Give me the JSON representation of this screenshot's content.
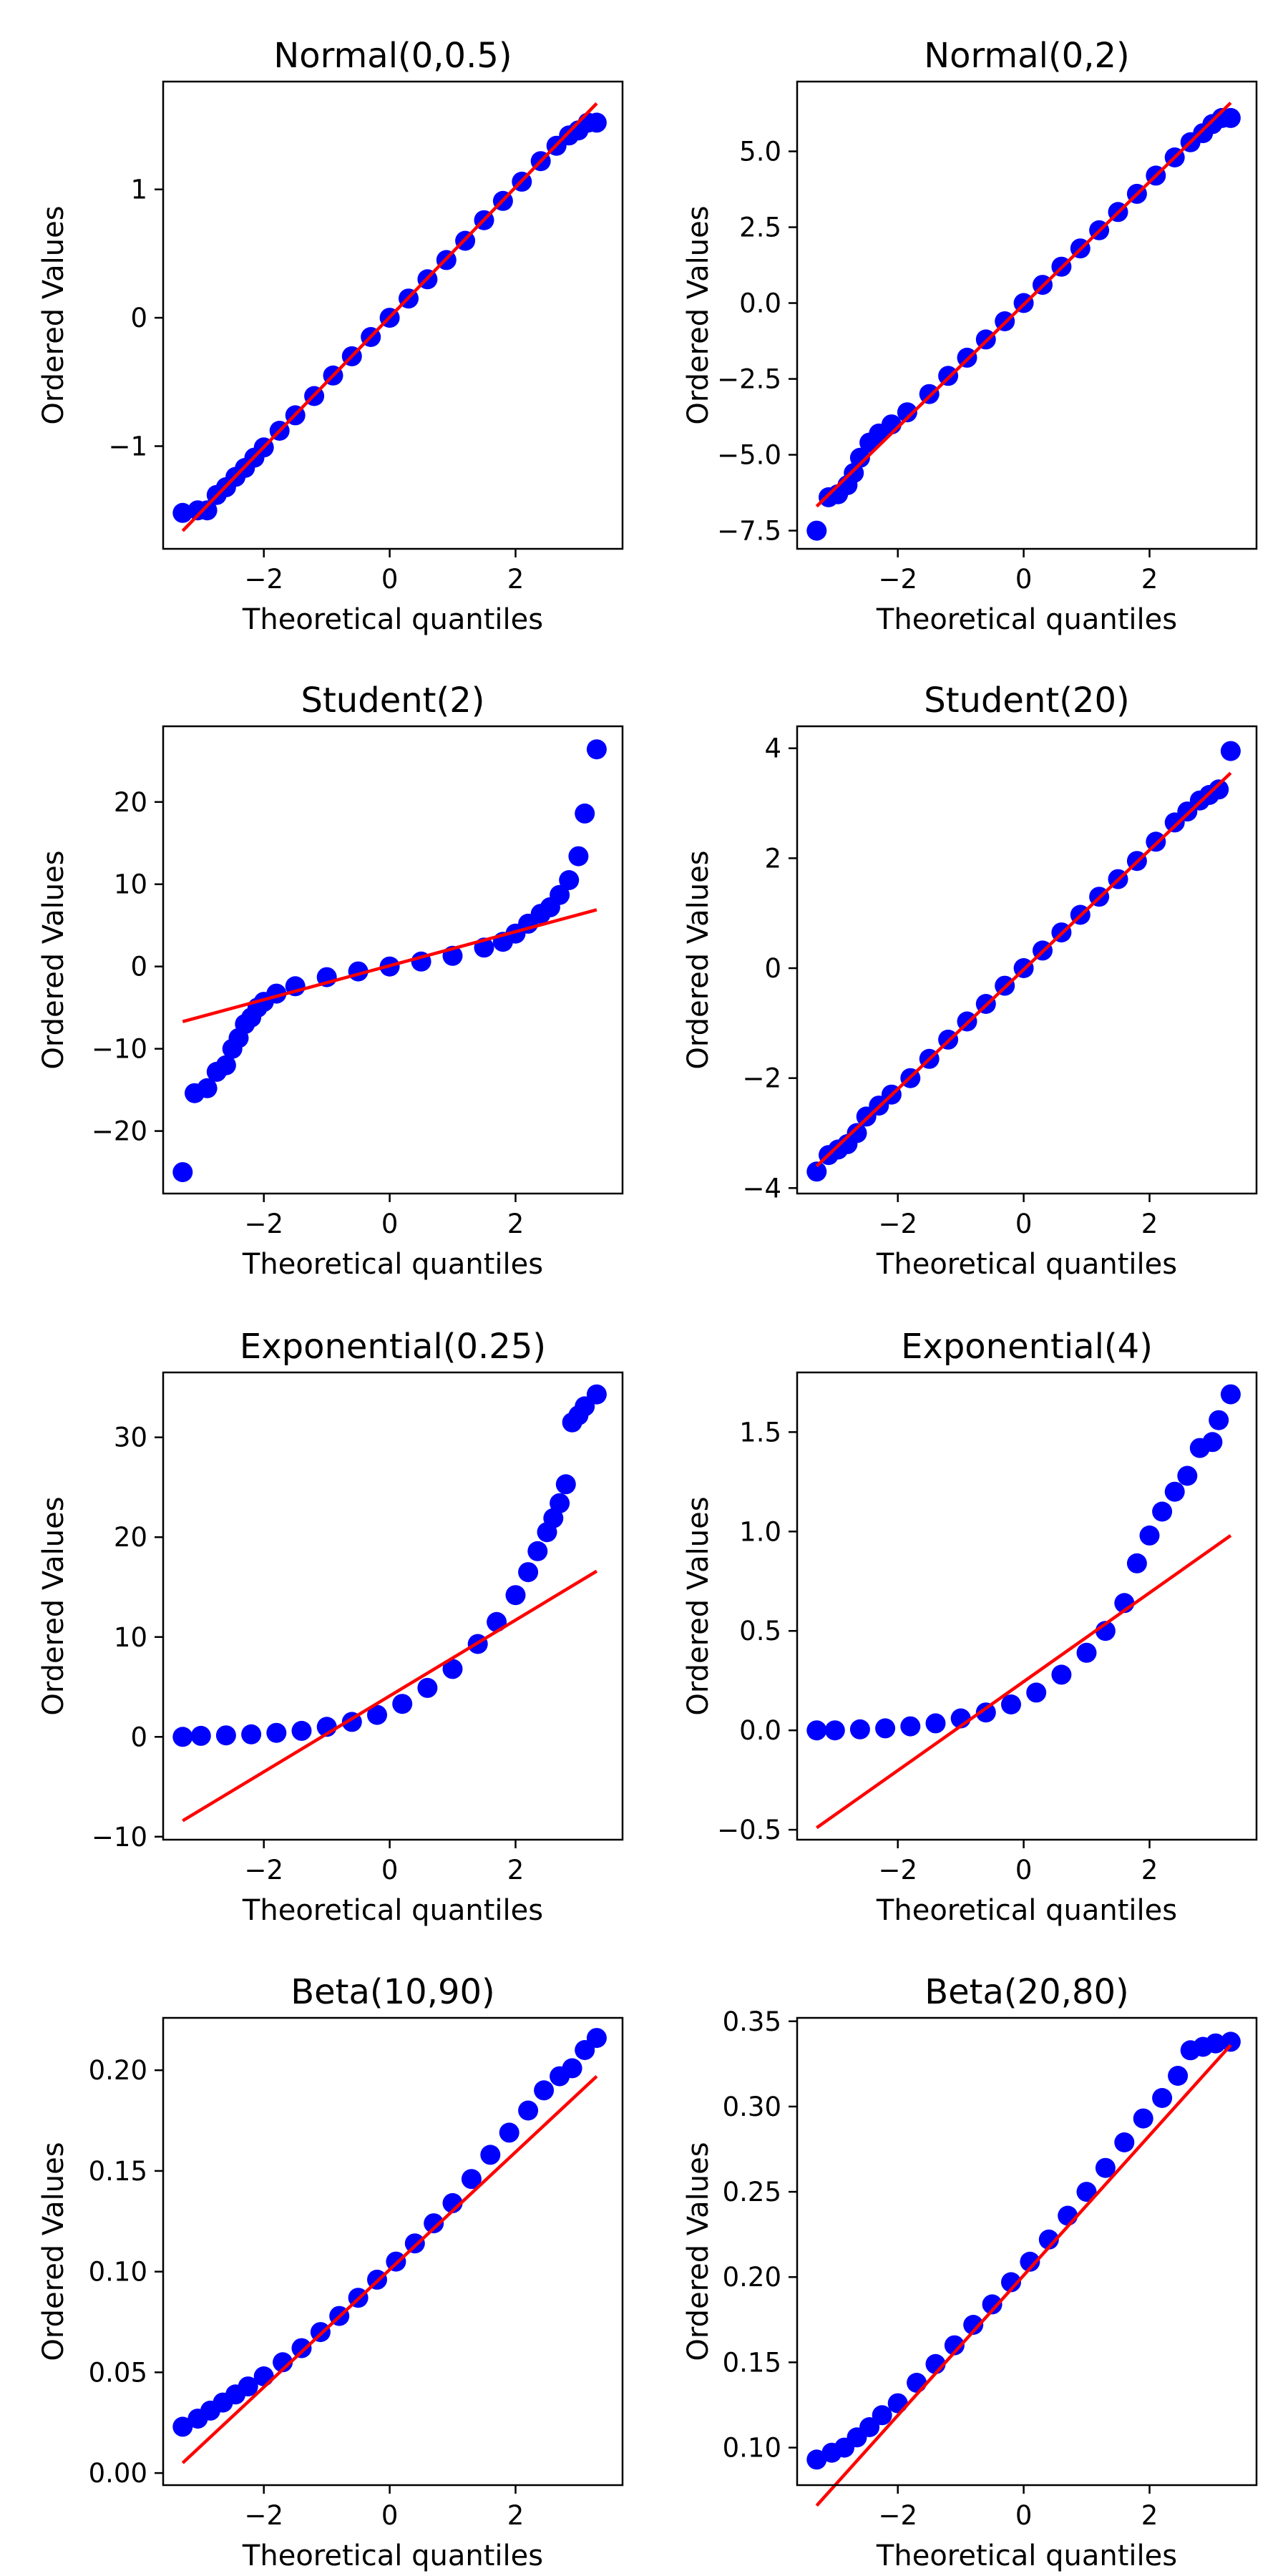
{
  "figure": {
    "colors": {
      "points": "#0000ff",
      "fit_line": "#ff0000",
      "axes": "#000000",
      "background": "#ffffff"
    }
  },
  "chart_data": [
    {
      "type": "scatter",
      "title": "Normal(0,0.5)",
      "xlabel": "Theoretical quantiles",
      "ylabel": "Ordered Values",
      "xlim": [
        -3.6,
        3.7
      ],
      "ylim": [
        -1.8,
        1.84
      ],
      "xticks": [
        -2,
        0,
        2
      ],
      "xtick_labels": [
        "−2",
        "0",
        "2"
      ],
      "yticks": [
        -1,
        0,
        1
      ],
      "ytick_labels": [
        "−1",
        "0",
        "1"
      ],
      "fit_line": {
        "x": [
          -3.29,
          3.29
        ],
        "y": [
          -1.66,
          1.67
        ]
      },
      "points": {
        "x": [
          -3.29,
          -3.05,
          -2.9,
          -2.75,
          -2.6,
          -2.45,
          -2.3,
          -2.15,
          -2.0,
          -1.75,
          -1.5,
          -1.2,
          -0.9,
          -0.6,
          -0.3,
          0.0,
          0.3,
          0.6,
          0.9,
          1.2,
          1.5,
          1.8,
          2.1,
          2.4,
          2.65,
          2.85,
          3.0,
          3.15,
          3.29
        ],
        "y": [
          -1.52,
          -1.5,
          -1.5,
          -1.38,
          -1.32,
          -1.24,
          -1.17,
          -1.09,
          -1.01,
          -0.88,
          -0.76,
          -0.61,
          -0.45,
          -0.3,
          -0.15,
          0.0,
          0.15,
          0.3,
          0.45,
          0.6,
          0.76,
          0.91,
          1.06,
          1.22,
          1.34,
          1.42,
          1.46,
          1.52,
          1.52
        ]
      }
    },
    {
      "type": "scatter",
      "title": "Normal(0,2)",
      "xlabel": "Theoretical quantiles",
      "ylabel": "Ordered Values",
      "xlim": [
        -3.6,
        3.7
      ],
      "ylim": [
        -8.1,
        7.3
      ],
      "xticks": [
        -2,
        0,
        2
      ],
      "xtick_labels": [
        "−2",
        "0",
        "2"
      ],
      "yticks": [
        -7.5,
        -5.0,
        -2.5,
        0.0,
        2.5,
        5.0
      ],
      "ytick_labels": [
        "−7.5",
        "−5.0",
        "−2.5",
        "0.0",
        "2.5",
        "5.0"
      ],
      "fit_line": {
        "x": [
          -3.29,
          3.29
        ],
        "y": [
          -6.7,
          6.6
        ]
      },
      "points": {
        "x": [
          -3.29,
          -3.1,
          -2.95,
          -2.8,
          -2.7,
          -2.6,
          -2.45,
          -2.3,
          -2.1,
          -1.85,
          -1.5,
          -1.2,
          -0.9,
          -0.6,
          -0.3,
          0.0,
          0.3,
          0.6,
          0.9,
          1.2,
          1.5,
          1.8,
          2.1,
          2.4,
          2.65,
          2.85,
          3.0,
          3.15,
          3.29
        ],
        "y": [
          -7.5,
          -6.4,
          -6.3,
          -6.0,
          -5.6,
          -5.1,
          -4.6,
          -4.3,
          -4.0,
          -3.6,
          -3.0,
          -2.4,
          -1.8,
          -1.2,
          -0.6,
          0.0,
          0.6,
          1.2,
          1.8,
          2.4,
          3.0,
          3.6,
          4.2,
          4.8,
          5.3,
          5.6,
          5.9,
          6.1,
          6.1
        ]
      }
    },
    {
      "type": "scatter",
      "title": "Student(2)",
      "xlabel": "Theoretical quantiles",
      "ylabel": "Ordered Values",
      "xlim": [
        -3.6,
        3.7
      ],
      "ylim": [
        -27.6,
        29.2
      ],
      "xticks": [
        -2,
        0,
        2
      ],
      "xtick_labels": [
        "−2",
        "0",
        "2"
      ],
      "yticks": [
        -20,
        -10,
        0,
        10,
        20
      ],
      "ytick_labels": [
        "−20",
        "−10",
        "0",
        "10",
        "20"
      ],
      "fit_line": {
        "x": [
          -3.29,
          3.29
        ],
        "y": [
          -6.7,
          6.9
        ]
      },
      "points": {
        "x": [
          -3.29,
          -3.1,
          -2.9,
          -2.75,
          -2.6,
          -2.5,
          -2.4,
          -2.3,
          -2.2,
          -2.1,
          -2.0,
          -1.8,
          -1.5,
          -1.0,
          -0.5,
          0.0,
          0.5,
          1.0,
          1.5,
          1.8,
          2.0,
          2.2,
          2.4,
          2.55,
          2.7,
          2.85,
          3.0,
          3.1,
          3.29
        ],
        "y": [
          -25.0,
          -15.4,
          -14.8,
          -12.8,
          -12.0,
          -10.0,
          -8.7,
          -7.0,
          -6.2,
          -5.0,
          -4.3,
          -3.3,
          -2.4,
          -1.3,
          -0.6,
          0.0,
          0.6,
          1.3,
          2.3,
          3.0,
          4.0,
          5.2,
          6.4,
          7.2,
          8.7,
          10.5,
          13.4,
          18.6,
          26.4
        ]
      }
    },
    {
      "type": "scatter",
      "title": "Student(20)",
      "xlabel": "Theoretical quantiles",
      "ylabel": "Ordered Values",
      "xlim": [
        -3.6,
        3.7
      ],
      "ylim": [
        -4.1,
        4.4
      ],
      "xticks": [
        -2,
        0,
        2
      ],
      "xtick_labels": [
        "−2",
        "0",
        "2"
      ],
      "yticks": [
        -4,
        -2,
        0,
        2,
        4
      ],
      "ytick_labels": [
        "−4",
        "−2",
        "0",
        "2",
        "4"
      ],
      "fit_line": {
        "x": [
          -3.29,
          3.29
        ],
        "y": [
          -3.6,
          3.55
        ]
      },
      "points": {
        "x": [
          -3.29,
          -3.1,
          -2.95,
          -2.8,
          -2.65,
          -2.5,
          -2.3,
          -2.1,
          -1.8,
          -1.5,
          -1.2,
          -0.9,
          -0.6,
          -0.3,
          0.0,
          0.3,
          0.6,
          0.9,
          1.2,
          1.5,
          1.8,
          2.1,
          2.4,
          2.6,
          2.8,
          2.95,
          3.1,
          3.29
        ],
        "y": [
          -3.7,
          -3.4,
          -3.3,
          -3.2,
          -3.0,
          -2.7,
          -2.5,
          -2.3,
          -2.0,
          -1.65,
          -1.3,
          -0.97,
          -0.65,
          -0.32,
          0.0,
          0.32,
          0.65,
          0.97,
          1.3,
          1.62,
          1.95,
          2.3,
          2.65,
          2.85,
          3.05,
          3.15,
          3.25,
          3.95
        ]
      }
    },
    {
      "type": "scatter",
      "title": "Exponential(0.25)",
      "xlabel": "Theoretical quantiles",
      "ylabel": "Ordered Values",
      "xlim": [
        -3.6,
        3.7
      ],
      "ylim": [
        -10.3,
        36.5
      ],
      "xticks": [
        -2,
        0,
        2
      ],
      "xtick_labels": [
        "−2",
        "0",
        "2"
      ],
      "yticks": [
        -10,
        0,
        10,
        20,
        30
      ],
      "ytick_labels": [
        "−10",
        "0",
        "10",
        "20",
        "30"
      ],
      "fit_line": {
        "x": [
          -3.29,
          3.29
        ],
        "y": [
          -8.4,
          16.6
        ]
      },
      "points": {
        "x": [
          -3.29,
          -3.0,
          -2.6,
          -2.2,
          -1.8,
          -1.4,
          -1.0,
          -0.6,
          -0.2,
          0.2,
          0.6,
          1.0,
          1.4,
          1.7,
          2.0,
          2.2,
          2.35,
          2.5,
          2.6,
          2.7,
          2.8,
          2.9,
          3.0,
          3.1,
          3.29
        ],
        "y": [
          0.0,
          0.1,
          0.15,
          0.25,
          0.4,
          0.6,
          1.0,
          1.5,
          2.2,
          3.3,
          4.9,
          6.8,
          9.3,
          11.5,
          14.2,
          16.5,
          18.6,
          20.5,
          21.9,
          23.4,
          25.3,
          31.5,
          32.2,
          33.1,
          34.3
        ]
      }
    },
    {
      "type": "scatter",
      "title": "Exponential(4)",
      "xlabel": "Theoretical quantiles",
      "ylabel": "Ordered Values",
      "xlim": [
        -3.6,
        3.7
      ],
      "ylim": [
        -0.55,
        1.8
      ],
      "xticks": [
        -2,
        0,
        2
      ],
      "xtick_labels": [
        "−2",
        "0",
        "2"
      ],
      "yticks": [
        -0.5,
        0.0,
        0.5,
        1.0,
        1.5
      ],
      "ytick_labels": [
        "−0.5",
        "0.0",
        "0.5",
        "1.0",
        "1.5"
      ],
      "fit_line": {
        "x": [
          -3.29,
          3.29
        ],
        "y": [
          -0.49,
          0.98
        ]
      },
      "points": {
        "x": [
          -3.29,
          -3.0,
          -2.6,
          -2.2,
          -1.8,
          -1.4,
          -1.0,
          -0.6,
          -0.2,
          0.2,
          0.6,
          1.0,
          1.3,
          1.6,
          1.8,
          2.0,
          2.2,
          2.4,
          2.6,
          2.8,
          3.0,
          3.1,
          3.29
        ],
        "y": [
          0.0,
          0.0,
          0.005,
          0.01,
          0.02,
          0.035,
          0.06,
          0.09,
          0.13,
          0.19,
          0.28,
          0.39,
          0.5,
          0.64,
          0.84,
          0.98,
          1.1,
          1.2,
          1.28,
          1.42,
          1.45,
          1.56,
          1.69
        ]
      }
    },
    {
      "type": "scatter",
      "title": "Beta(10,90)",
      "xlabel": "Theoretical quantiles",
      "ylabel": "Ordered Values",
      "xlim": [
        -3.6,
        3.7
      ],
      "ylim": [
        -0.006,
        0.226
      ],
      "xticks": [
        -2,
        0,
        2
      ],
      "xtick_labels": [
        "−2",
        "0",
        "2"
      ],
      "yticks": [
        0.0,
        0.05,
        0.1,
        0.15,
        0.2
      ],
      "ytick_labels": [
        "0.00",
        "0.05",
        "0.10",
        "0.15",
        "0.20"
      ],
      "fit_line": {
        "x": [
          -3.29,
          3.29
        ],
        "y": [
          0.005,
          0.197
        ]
      },
      "points": {
        "x": [
          -3.29,
          -3.05,
          -2.85,
          -2.65,
          -2.45,
          -2.25,
          -2.0,
          -1.7,
          -1.4,
          -1.1,
          -0.8,
          -0.5,
          -0.2,
          0.1,
          0.4,
          0.7,
          1.0,
          1.3,
          1.6,
          1.9,
          2.2,
          2.45,
          2.7,
          2.9,
          3.1,
          3.29
        ],
        "y": [
          0.023,
          0.027,
          0.031,
          0.035,
          0.039,
          0.043,
          0.048,
          0.055,
          0.062,
          0.07,
          0.078,
          0.087,
          0.096,
          0.105,
          0.114,
          0.124,
          0.134,
          0.146,
          0.158,
          0.169,
          0.18,
          0.19,
          0.197,
          0.201,
          0.21,
          0.216
        ]
      }
    },
    {
      "type": "scatter",
      "title": "Beta(20,80)",
      "xlabel": "Theoretical quantiles",
      "ylabel": "Ordered Values",
      "xlim": [
        -3.6,
        3.7
      ],
      "ylim": [
        0.078,
        0.352
      ],
      "xticks": [
        -2,
        0,
        2
      ],
      "xtick_labels": [
        "−2",
        "0",
        "2"
      ],
      "yticks": [
        0.1,
        0.15,
        0.2,
        0.25,
        0.3,
        0.35
      ],
      "ytick_labels": [
        "0.10",
        "0.15",
        "0.20",
        "0.25",
        "0.30",
        "0.35"
      ],
      "fit_line": {
        "x": [
          -3.29,
          3.29
        ],
        "y": [
          0.066,
          0.336
        ]
      },
      "points": {
        "x": [
          -3.29,
          -3.05,
          -2.85,
          -2.65,
          -2.45,
          -2.25,
          -2.0,
          -1.7,
          -1.4,
          -1.1,
          -0.8,
          -0.5,
          -0.2,
          0.1,
          0.4,
          0.7,
          1.0,
          1.3,
          1.6,
          1.9,
          2.2,
          2.45,
          2.65,
          2.85,
          3.05,
          3.29
        ],
        "y": [
          0.093,
          0.097,
          0.1,
          0.106,
          0.112,
          0.119,
          0.126,
          0.138,
          0.149,
          0.16,
          0.172,
          0.184,
          0.197,
          0.209,
          0.222,
          0.236,
          0.25,
          0.264,
          0.279,
          0.293,
          0.305,
          0.318,
          0.333,
          0.335,
          0.337,
          0.338
        ]
      }
    }
  ]
}
